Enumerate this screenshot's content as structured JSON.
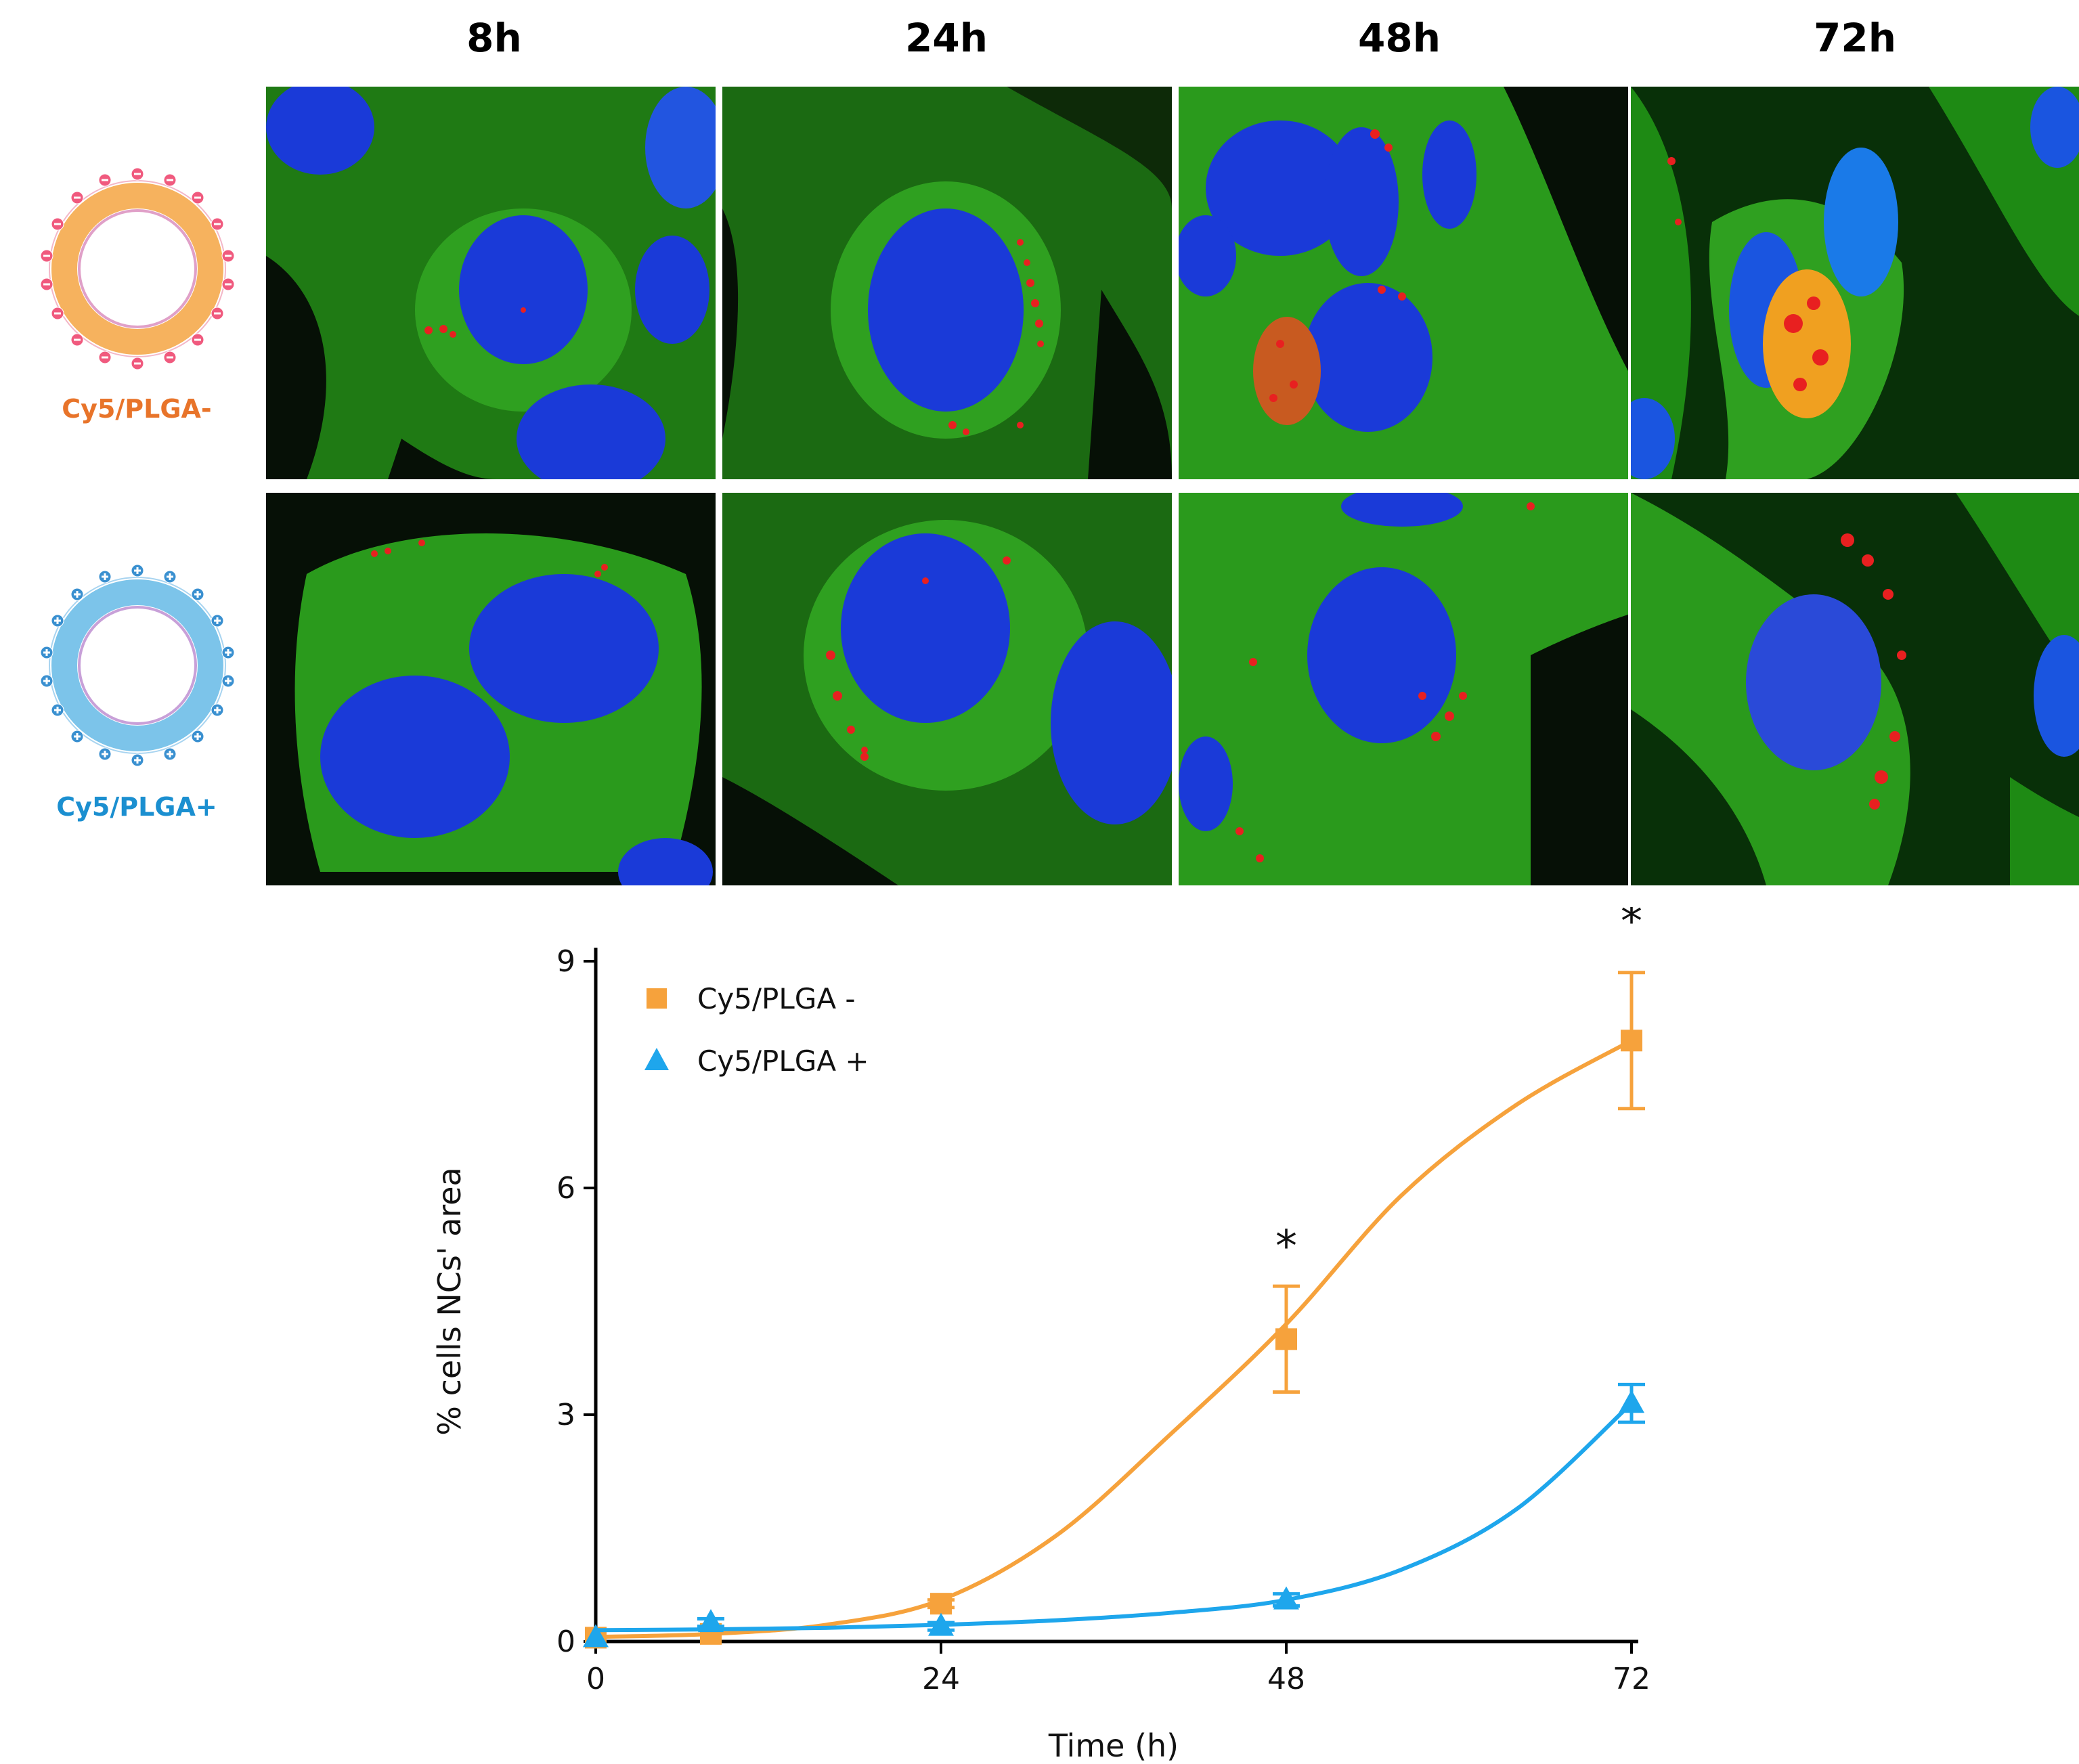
{
  "figure": {
    "columns": [
      "8h",
      "24h",
      "48h",
      "72h"
    ],
    "rows": [
      {
        "label": "Cy5/PLGA-",
        "color": "#e8742a"
      },
      {
        "label": "Cy5/PLGA+",
        "color": "#1b8fd0"
      }
    ]
  },
  "chart_data": {
    "type": "line",
    "xlabel": "Time (h)",
    "ylabel": "% cells NCs' area",
    "xlim": [
      0,
      72
    ],
    "ylim": [
      0,
      9
    ],
    "xticks": [
      0,
      24,
      48,
      72
    ],
    "yticks": [
      0,
      3,
      6,
      9
    ],
    "legend_position": "top-left",
    "series": [
      {
        "name": "Cy5/PLGA -",
        "color": "#f6a23c",
        "marker": "square",
        "x": [
          0,
          8,
          24,
          48,
          72
        ],
        "y": [
          0.05,
          0.1,
          0.5,
          4.0,
          7.95
        ],
        "error": [
          0.0,
          0.0,
          0.05,
          0.7,
          0.9
        ],
        "fit_x": [
          0,
          8,
          16,
          24,
          32,
          40,
          48,
          56,
          64,
          72
        ],
        "fit_y": [
          0.06,
          0.1,
          0.22,
          0.55,
          1.4,
          2.75,
          4.2,
          5.9,
          7.1,
          7.95
        ]
      },
      {
        "name": "Cy5/PLGA +",
        "color": "#1ea6ec",
        "marker": "triangle",
        "x": [
          0,
          8,
          24,
          48,
          72
        ],
        "y": [
          0.05,
          0.25,
          0.2,
          0.55,
          3.15
        ],
        "error": [
          0.0,
          0.05,
          0.05,
          0.08,
          0.25
        ],
        "fit_x": [
          0,
          8,
          16,
          24,
          32,
          40,
          48,
          56,
          64,
          72
        ],
        "fit_y": [
          0.15,
          0.16,
          0.18,
          0.22,
          0.28,
          0.38,
          0.55,
          0.95,
          1.75,
          3.15
        ]
      }
    ],
    "annotations": [
      {
        "text": "*",
        "x": 48,
        "y": 5.3
      },
      {
        "text": "*",
        "x": 72,
        "y": 9.6
      }
    ]
  }
}
